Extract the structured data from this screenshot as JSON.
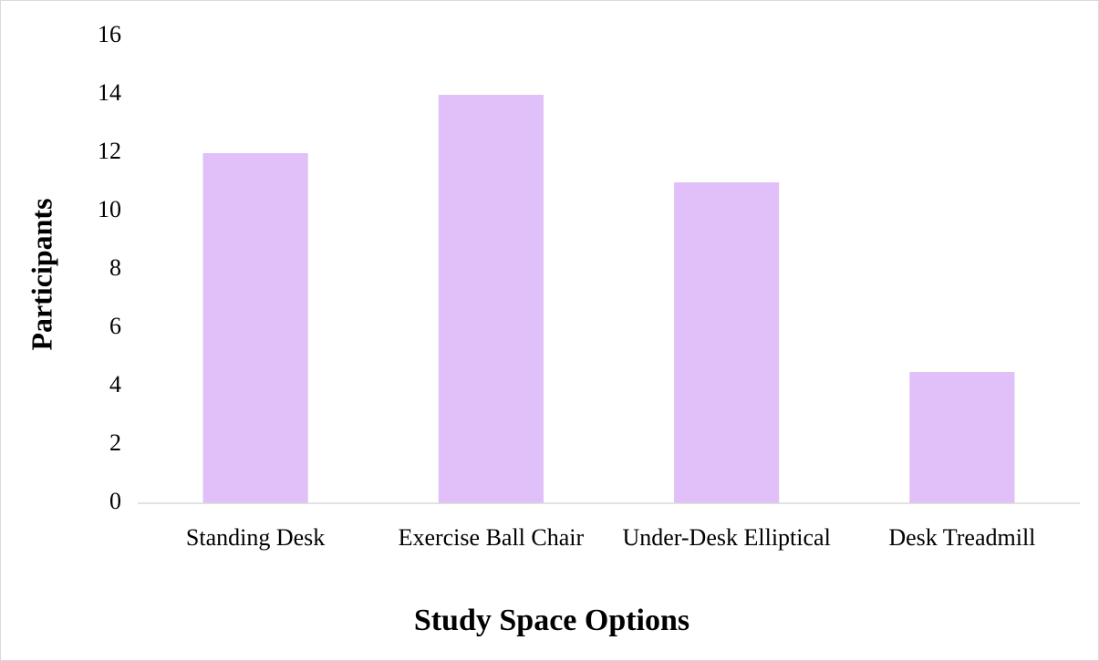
{
  "chart_data": {
    "type": "bar",
    "x_label": "Study Space Options",
    "y_label": "Participants",
    "categories": [
      "Standing Desk",
      "Exercise Ball Chair",
      "Under-Desk Elliptical",
      "Desk Treadmill"
    ],
    "values": [
      12,
      14,
      11,
      4.5
    ],
    "color": "#e1bff9",
    "ylim": [
      0,
      16
    ],
    "yticks": [
      0,
      2,
      4,
      6,
      8,
      10,
      12,
      14,
      16
    ],
    "grid": false
  }
}
